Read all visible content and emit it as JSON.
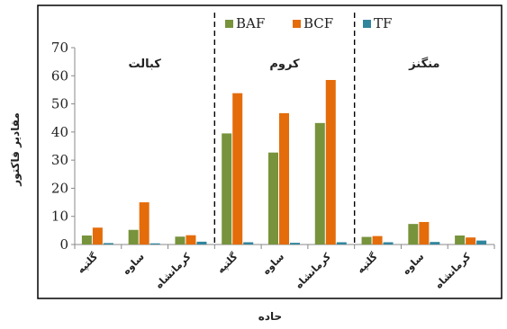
{
  "chart_data": {
    "type": "bar",
    "xlabel": "حاده",
    "ylabel": "مقادیر فاکتور",
    "ylim": [
      0,
      70
    ],
    "yticks": [
      0,
      10,
      20,
      30,
      40,
      50,
      60,
      70
    ],
    "grid": false,
    "legend_position": "top-center",
    "groups": [
      {
        "label": "کبالت",
        "categories": [
          "گلتپه",
          "ساوه",
          "کرمانشاه"
        ]
      },
      {
        "label": "کروم",
        "categories": [
          "گلتپه",
          "ساوه",
          "کرمانشاه"
        ]
      },
      {
        "label": "منگنز",
        "categories": [
          "گلتپه",
          "ساوه",
          "کرمانشاه"
        ]
      }
    ],
    "series": [
      {
        "name": "BAF",
        "color": "#77933C",
        "values": [
          3.2,
          5.2,
          2.8,
          39.5,
          32.7,
          43.2,
          2.7,
          7.3,
          3.2
        ]
      },
      {
        "name": "BCF",
        "color": "#E46C0A",
        "values": [
          6.0,
          15.0,
          3.3,
          53.8,
          46.7,
          58.5,
          3.0,
          8.0,
          2.5
        ]
      },
      {
        "name": "TF",
        "color": "#31859C",
        "values": [
          0.5,
          0.4,
          1.0,
          0.8,
          0.6,
          0.8,
          0.8,
          0.9,
          1.4
        ]
      }
    ]
  }
}
